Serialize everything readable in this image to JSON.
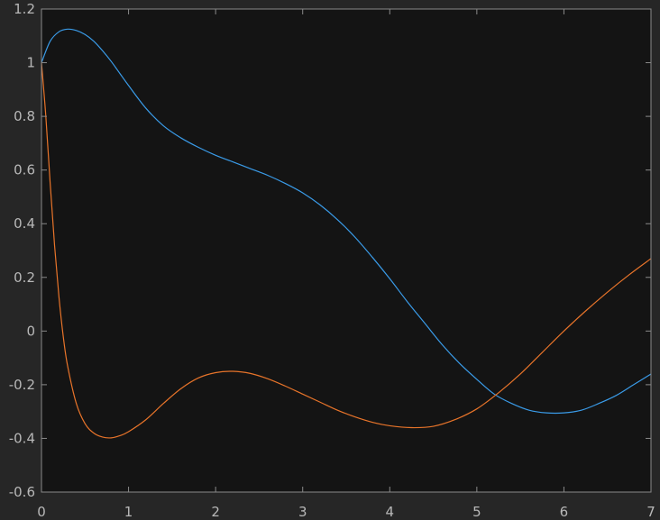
{
  "chart_data": {
    "type": "line",
    "title": "",
    "xlabel": "",
    "ylabel": "",
    "xlim": [
      0,
      7
    ],
    "ylim": [
      -0.6,
      1.2
    ],
    "grid": false,
    "legend": "none",
    "x_ticks": [
      "0",
      "1",
      "2",
      "3",
      "4",
      "5",
      "6",
      "7"
    ],
    "y_ticks": [
      "-0.6",
      "-0.4",
      "-0.2",
      "0",
      "0.2",
      "0.4",
      "0.6",
      "0.8",
      "1",
      "1.2"
    ],
    "series": [
      {
        "color": "#3a9be8",
        "x": [
          0,
          0.1,
          0.2,
          0.3,
          0.4,
          0.5,
          0.6,
          0.7,
          0.8,
          0.9,
          1.0,
          1.2,
          1.4,
          1.6,
          1.8,
          2.0,
          2.2,
          2.4,
          2.6,
          2.8,
          3.0,
          3.2,
          3.4,
          3.6,
          3.8,
          4.0,
          4.2,
          4.4,
          4.6,
          4.8,
          5.0,
          5.2,
          5.4,
          5.6,
          5.8,
          6.0,
          6.2,
          6.4,
          6.6,
          6.8,
          7.0
        ],
        "y": [
          1.0,
          1.08,
          1.115,
          1.125,
          1.12,
          1.105,
          1.08,
          1.045,
          1.005,
          0.96,
          0.915,
          0.83,
          0.765,
          0.72,
          0.685,
          0.655,
          0.63,
          0.605,
          0.58,
          0.55,
          0.515,
          0.47,
          0.415,
          0.35,
          0.275,
          0.195,
          0.11,
          0.03,
          -0.05,
          -0.12,
          -0.18,
          -0.235,
          -0.27,
          -0.295,
          -0.305,
          -0.305,
          -0.295,
          -0.27,
          -0.24,
          -0.2,
          -0.16
        ]
      },
      {
        "color": "#e8742a",
        "x": [
          0,
          0.05,
          0.1,
          0.15,
          0.2,
          0.25,
          0.3,
          0.4,
          0.5,
          0.6,
          0.7,
          0.8,
          0.9,
          1.0,
          1.2,
          1.4,
          1.6,
          1.8,
          2.0,
          2.2,
          2.4,
          2.6,
          2.8,
          3.0,
          3.2,
          3.4,
          3.6,
          3.8,
          4.0,
          4.25,
          4.5,
          4.75,
          5.0,
          5.25,
          5.5,
          5.75,
          6.0,
          6.25,
          6.5,
          6.75,
          7.0
        ],
        "y": [
          1.0,
          0.8,
          0.55,
          0.32,
          0.13,
          -0.02,
          -0.13,
          -0.27,
          -0.345,
          -0.38,
          -0.395,
          -0.398,
          -0.39,
          -0.375,
          -0.33,
          -0.27,
          -0.215,
          -0.175,
          -0.155,
          -0.15,
          -0.158,
          -0.178,
          -0.205,
          -0.235,
          -0.265,
          -0.295,
          -0.32,
          -0.34,
          -0.353,
          -0.36,
          -0.355,
          -0.33,
          -0.29,
          -0.23,
          -0.16,
          -0.08,
          0.0,
          0.075,
          0.145,
          0.21,
          0.27
        ]
      }
    ]
  }
}
